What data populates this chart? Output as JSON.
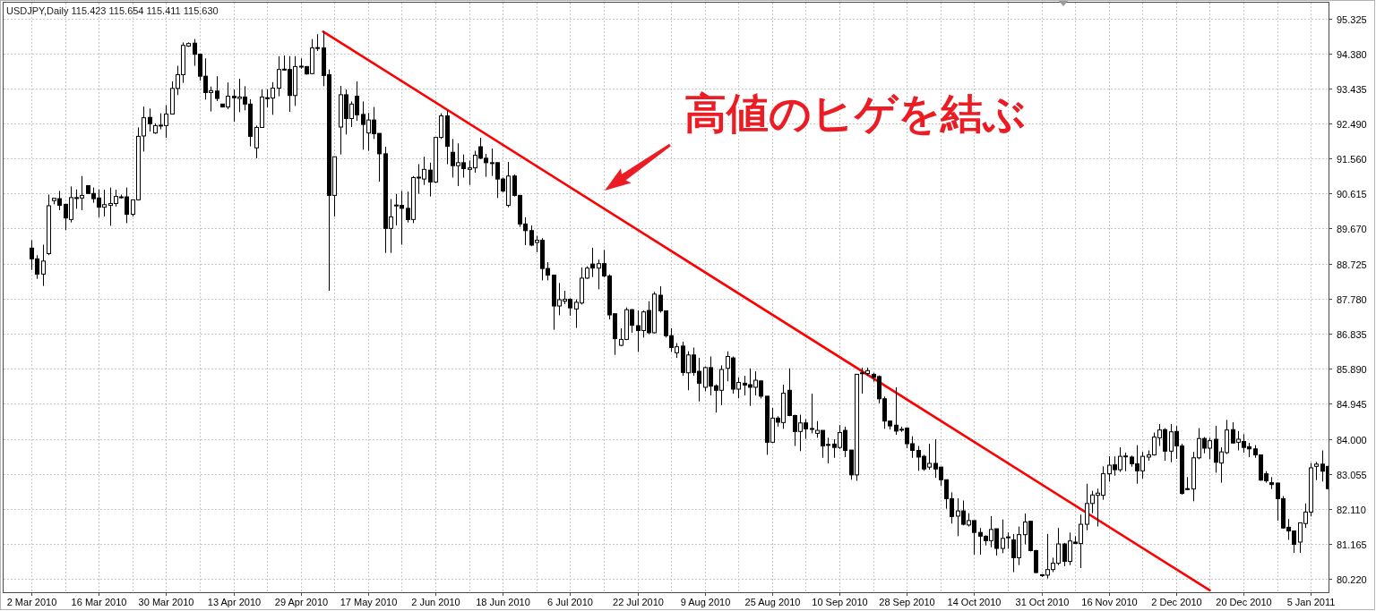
{
  "chart_data": {
    "type": "candlestick",
    "title": "USDJPY,Daily 115.423 115.654 115.411 115.630",
    "annotations": [
      "高値のヒゲを結ぶ"
    ],
    "categories": [
      "2 Mar 2010",
      null,
      null,
      null,
      null,
      null,
      null,
      null,
      null,
      null,
      null,
      null,
      "16 Mar 2010",
      null,
      null,
      null,
      null,
      null,
      null,
      null,
      null,
      null,
      null,
      null,
      "30 Mar 2010",
      null,
      null,
      null,
      null,
      null,
      null,
      null,
      null,
      null,
      null,
      null,
      "13 Apr 2010",
      null,
      null,
      null,
      null,
      null,
      null,
      null,
      null,
      null,
      null,
      null,
      "29 Apr 2010",
      null,
      null,
      null,
      null,
      null,
      null,
      null,
      null,
      null,
      null,
      null,
      "17 May 2010",
      null,
      null,
      null,
      null,
      null,
      null,
      null,
      null,
      null,
      null,
      null,
      "2 Jun 2010",
      null,
      null,
      null,
      null,
      null,
      null,
      null,
      null,
      null,
      null,
      null,
      "18 Jun 2010",
      null,
      null,
      null,
      null,
      null,
      null,
      null,
      null,
      null,
      null,
      null,
      "6 Jul 2010",
      null,
      null,
      null,
      null,
      null,
      null,
      null,
      null,
      null,
      null,
      null,
      "22 Jul 2010",
      null,
      null,
      null,
      null,
      null,
      null,
      null,
      null,
      null,
      null,
      null,
      "9 Aug 2010",
      null,
      null,
      null,
      null,
      null,
      null,
      null,
      null,
      null,
      null,
      null,
      "25 Aug 2010",
      null,
      null,
      null,
      null,
      null,
      null,
      null,
      null,
      null,
      null,
      null,
      "10 Sep 2010",
      null,
      null,
      null,
      null,
      null,
      null,
      null,
      null,
      null,
      null,
      null,
      "28 Sep 2010",
      null,
      null,
      null,
      null,
      null,
      null,
      null,
      null,
      null,
      null,
      null,
      "14 Oct 2010",
      null,
      null,
      null,
      null,
      null,
      null,
      null,
      null,
      null,
      null,
      null,
      "31 Oct 2010",
      null,
      null,
      null,
      null,
      null,
      null,
      null,
      null,
      null,
      null,
      null,
      "16 Nov 2010",
      null,
      null,
      null,
      null,
      null,
      null,
      null,
      null,
      null,
      null,
      null,
      "2 Dec 2010",
      null,
      null,
      null,
      null,
      null,
      null,
      null,
      null,
      null,
      null,
      null,
      "20 Dec 2010",
      null,
      null,
      null,
      null,
      null,
      null,
      null,
      null,
      null,
      null,
      null,
      "5 Jan 2011",
      null,
      null,
      null
    ],
    "series": [
      {
        "ohlc": [
          [
            89.14,
            89.35,
            88.55,
            88.85
          ],
          [
            88.85,
            88.95,
            88.31,
            88.44
          ],
          [
            88.44,
            89.23,
            88.12,
            88.79
          ],
          [
            88.99,
            90.58,
            88.95,
            90.28
          ],
          [
            90.42,
            90.48,
            90.32,
            90.48
          ],
          [
            90.47,
            90.68,
            90.16,
            90.29
          ],
          [
            90.32,
            90.33,
            89.62,
            89.95
          ],
          [
            89.91,
            90.8,
            89.83,
            90.5
          ],
          [
            90.49,
            90.72,
            90.2,
            90.5
          ],
          [
            90.49,
            91.08,
            90.16,
            90.56
          ],
          [
            90.82,
            90.83,
            90.6,
            90.61
          ],
          [
            90.61,
            90.77,
            90.36,
            90.47
          ],
          [
            90.49,
            90.72,
            89.97,
            90.24
          ],
          [
            90.24,
            90.71,
            89.99,
            90.31
          ],
          [
            90.29,
            90.77,
            89.74,
            90.34
          ],
          [
            90.34,
            90.71,
            90.26,
            90.53
          ],
          [
            90.52,
            90.58,
            90.47,
            90.5
          ],
          [
            90.52,
            90.77,
            89.81,
            90.05
          ],
          [
            90.05,
            90.45,
            89.99,
            90.44
          ],
          [
            90.44,
            92.39,
            90.42,
            92.15
          ],
          [
            92.16,
            92.95,
            91.74,
            92.65
          ],
          [
            92.66,
            92.9,
            92.28,
            92.49
          ],
          [
            92.24,
            92.5,
            92.22,
            92.44
          ],
          [
            92.44,
            92.77,
            92.34,
            92.45
          ],
          [
            92.44,
            92.99,
            92.11,
            92.75
          ],
          [
            92.75,
            93.63,
            92.74,
            93.44
          ],
          [
            93.44,
            94.05,
            93.26,
            93.81
          ],
          [
            93.81,
            94.68,
            93.59,
            94.6
          ],
          [
            94.58,
            94.68,
            94.56,
            94.65
          ],
          [
            94.66,
            94.77,
            94.05,
            94.36
          ],
          [
            94.36,
            94.37,
            93.65,
            93.77
          ],
          [
            93.77,
            94.25,
            93.14,
            93.33
          ],
          [
            93.33,
            93.49,
            92.82,
            93.38
          ],
          [
            93.37,
            93.77,
            93.1,
            93.17
          ],
          [
            93.02,
            93.02,
            92.94,
            92.94
          ],
          [
            92.94,
            93.6,
            92.88,
            93.23
          ],
          [
            93.23,
            93.41,
            92.55,
            93.19
          ],
          [
            93.17,
            93.7,
            92.8,
            93.21
          ],
          [
            93.21,
            93.5,
            92.85,
            93.02
          ],
          [
            93.02,
            93.15,
            91.88,
            92.15
          ],
          [
            91.84,
            92.44,
            91.56,
            92.39
          ],
          [
            92.39,
            93.41,
            92.38,
            93.21
          ],
          [
            93.19,
            93.42,
            92.93,
            93.18
          ],
          [
            93.18,
            93.61,
            92.73,
            93.45
          ],
          [
            93.45,
            94.31,
            93.23,
            93.95
          ],
          [
            93.96,
            94.33,
            93.93,
            93.94
          ],
          [
            93.95,
            94.31,
            92.81,
            93.25
          ],
          [
            93.25,
            94.31,
            92.97,
            94.03
          ],
          [
            94.03,
            94.25,
            93.97,
            94.04
          ],
          [
            94.03,
            94.04,
            93.81,
            93.83
          ],
          [
            93.84,
            94.77,
            93.82,
            94.53
          ],
          [
            94.53,
            94.9,
            94.45,
            94.54
          ],
          [
            94.53,
            94.97,
            93.5,
            93.79
          ],
          [
            93.81,
            93.95,
            87.99,
            90.56
          ],
          [
            90.56,
            91.6,
            89.99,
            91.6
          ],
          [
            92.4,
            93.51,
            91.66,
            93.27
          ],
          [
            93.27,
            93.41,
            92.2,
            92.63
          ],
          [
            92.63,
            93.09,
            92.4,
            93.02
          ],
          [
            93.23,
            93.63,
            92.57,
            92.73
          ],
          [
            92.74,
            93.09,
            91.79,
            92.47
          ],
          [
            92.24,
            92.78,
            91.76,
            92.59
          ],
          [
            92.59,
            92.94,
            92.08,
            92.22
          ],
          [
            92.23,
            92.23,
            90.93,
            91.68
          ],
          [
            91.68,
            91.87,
            89.01,
            89.67
          ],
          [
            89.67,
            90.46,
            89.01,
            89.98
          ],
          [
            90.29,
            90.6,
            89.75,
            90.3
          ],
          [
            90.29,
            90.68,
            89.23,
            90.21
          ],
          [
            90.21,
            90.66,
            89.83,
            89.91
          ],
          [
            89.91,
            91.08,
            89.81,
            91.04
          ],
          [
            91.04,
            91.4,
            90.6,
            91.05
          ],
          [
            91.0,
            91.6,
            90.84,
            91.26
          ],
          [
            91.24,
            91.44,
            90.53,
            90.92
          ],
          [
            90.92,
            92.13,
            90.89,
            92.12
          ],
          [
            92.12,
            92.77,
            92.08,
            92.7
          ],
          [
            92.7,
            92.85,
            91.4,
            91.88
          ],
          [
            91.72,
            92.08,
            91.04,
            91.36
          ],
          [
            91.36,
            91.96,
            90.81,
            91.44
          ],
          [
            91.44,
            91.66,
            91.04,
            91.28
          ],
          [
            91.26,
            91.5,
            90.84,
            91.3
          ],
          [
            91.3,
            91.76,
            91.17,
            91.64
          ],
          [
            91.87,
            92.11,
            91.54,
            91.56
          ],
          [
            91.56,
            91.68,
            91.06,
            91.44
          ],
          [
            91.44,
            91.82,
            91.08,
            91.43
          ],
          [
            91.44,
            91.45,
            90.49,
            91.0
          ],
          [
            91.0,
            91.04,
            90.64,
            90.68
          ],
          [
            90.29,
            91.46,
            90.24,
            91.08
          ],
          [
            91.08,
            91.12,
            90.53,
            90.56
          ],
          [
            90.56,
            90.57,
            89.71,
            89.79
          ],
          [
            89.79,
            89.97,
            89.22,
            89.61
          ],
          [
            89.61,
            89.75,
            89.19,
            89.22
          ],
          [
            89.29,
            89.47,
            89.03,
            89.35
          ],
          [
            89.35,
            89.41,
            88.27,
            88.59
          ],
          [
            88.59,
            88.76,
            88.27,
            88.41
          ],
          [
            88.41,
            88.42,
            86.94,
            87.58
          ],
          [
            87.58,
            88.2,
            87.33,
            87.75
          ],
          [
            87.71,
            87.99,
            87.63,
            87.76
          ],
          [
            87.76,
            87.79,
            87.32,
            87.53
          ],
          [
            87.5,
            87.76,
            86.99,
            87.68
          ],
          [
            87.66,
            88.62,
            87.62,
            88.33
          ],
          [
            88.33,
            88.65,
            88.31,
            88.6
          ],
          [
            88.71,
            89.15,
            88.36,
            88.6
          ],
          [
            88.6,
            88.83,
            88.03,
            88.72
          ],
          [
            88.72,
            89.09,
            88.35,
            88.39
          ],
          [
            88.39,
            88.43,
            87.22,
            87.34
          ],
          [
            87.37,
            87.38,
            86.26,
            86.7
          ],
          [
            86.52,
            86.98,
            86.5,
            86.68
          ],
          [
            86.68,
            87.54,
            86.66,
            87.48
          ],
          [
            87.48,
            87.5,
            86.86,
            87.06
          ],
          [
            87.05,
            87.46,
            86.34,
            86.92
          ],
          [
            86.92,
            87.46,
            86.73,
            87.42
          ],
          [
            87.46,
            87.71,
            86.82,
            86.86
          ],
          [
            86.86,
            87.96,
            86.84,
            87.9
          ],
          [
            87.87,
            88.11,
            87.4,
            87.45
          ],
          [
            87.45,
            87.46,
            86.73,
            86.78
          ],
          [
            86.78,
            86.98,
            86.34,
            86.46
          ],
          [
            86.32,
            86.58,
            86.18,
            86.48
          ],
          [
            86.5,
            86.62,
            85.7,
            85.79
          ],
          [
            85.78,
            86.36,
            85.31,
            86.26
          ],
          [
            86.26,
            86.46,
            85.7,
            85.79
          ],
          [
            85.82,
            86.18,
            85.01,
            85.5
          ],
          [
            85.39,
            85.95,
            85.28,
            85.92
          ],
          [
            85.92,
            86.22,
            85.17,
            85.42
          ],
          [
            85.43,
            85.47,
            84.71,
            85.31
          ],
          [
            85.31,
            85.98,
            84.91,
            85.87
          ],
          [
            85.9,
            86.36,
            85.55,
            86.22
          ],
          [
            86.18,
            86.22,
            85.22,
            85.34
          ],
          [
            85.34,
            85.66,
            85.09,
            85.52
          ],
          [
            85.5,
            85.7,
            85.17,
            85.45
          ],
          [
            85.46,
            85.9,
            84.89,
            85.39
          ],
          [
            85.39,
            85.82,
            85.17,
            85.58
          ],
          [
            85.56,
            85.58,
            85.09,
            85.15
          ],
          [
            85.15,
            85.15,
            83.57,
            83.91
          ],
          [
            83.91,
            84.83,
            83.89,
            84.56
          ],
          [
            84.56,
            84.61,
            84.33,
            84.45
          ],
          [
            84.44,
            85.46,
            84.27,
            85.23
          ],
          [
            85.31,
            85.9,
            84.61,
            84.63
          ],
          [
            84.63,
            84.65,
            83.81,
            84.2
          ],
          [
            84.2,
            84.65,
            83.67,
            84.43
          ],
          [
            84.43,
            84.53,
            84.0,
            84.27
          ],
          [
            84.27,
            85.22,
            84.15,
            84.28
          ],
          [
            84.15,
            84.48,
            84.03,
            84.23
          ],
          [
            84.23,
            84.23,
            83.49,
            83.81
          ],
          [
            83.85,
            84.03,
            83.34,
            83.84
          ],
          [
            83.86,
            83.99,
            83.49,
            83.77
          ],
          [
            83.77,
            84.37,
            83.73,
            84.17
          ],
          [
            84.23,
            84.33,
            83.51,
            83.69
          ],
          [
            83.7,
            83.7,
            82.9,
            83.03
          ],
          [
            83.03,
            85.75,
            82.87,
            85.74
          ],
          [
            85.77,
            85.92,
            85.22,
            85.78
          ],
          [
            85.76,
            85.92,
            85.7,
            85.84
          ],
          [
            85.74,
            85.78,
            85.54,
            85.66
          ],
          [
            85.68,
            85.71,
            84.96,
            85.08
          ],
          [
            85.08,
            85.14,
            84.27,
            84.48
          ],
          [
            84.48,
            84.49,
            84.25,
            84.35
          ],
          [
            84.37,
            85.39,
            84.11,
            84.21
          ],
          [
            84.25,
            84.33,
            84.19,
            84.26
          ],
          [
            84.29,
            84.31,
            83.75,
            83.87
          ],
          [
            83.87,
            84.07,
            83.49,
            83.69
          ],
          [
            83.69,
            83.81,
            83.14,
            83.51
          ],
          [
            83.53,
            83.57,
            83.14,
            83.19
          ],
          [
            83.24,
            83.87,
            83.17,
            83.34
          ],
          [
            83.34,
            83.99,
            82.95,
            83.19
          ],
          [
            83.24,
            83.25,
            82.74,
            82.9
          ],
          [
            82.9,
            82.9,
            82.12,
            82.39
          ],
          [
            82.39,
            82.56,
            81.72,
            81.91
          ],
          [
            81.92,
            82.4,
            81.38,
            82.06
          ],
          [
            82.06,
            82.34,
            81.67,
            81.7
          ],
          [
            81.68,
            82.0,
            81.64,
            81.8
          ],
          [
            81.8,
            81.8,
            80.88,
            81.48
          ],
          [
            81.48,
            81.6,
            80.88,
            81.38
          ],
          [
            81.38,
            81.4,
            81.13,
            81.26
          ],
          [
            81.26,
            81.92,
            81.08,
            81.56
          ],
          [
            81.58,
            81.58,
            80.86,
            81.05
          ],
          [
            81.05,
            81.83,
            80.92,
            81.32
          ],
          [
            81.35,
            81.48,
            81.04,
            81.36
          ],
          [
            81.28,
            81.44,
            80.41,
            80.8
          ],
          [
            80.8,
            81.64,
            80.6,
            81.42
          ],
          [
            81.42,
            81.99,
            81.16,
            81.76
          ],
          [
            81.78,
            81.78,
            80.97,
            80.99
          ],
          [
            80.99,
            81.01,
            80.38,
            80.4
          ],
          [
            80.33,
            80.36,
            80.28,
            80.34
          ],
          [
            80.33,
            81.44,
            80.24,
            80.48
          ],
          [
            80.48,
            80.8,
            80.41,
            80.65
          ],
          [
            80.65,
            81.6,
            80.6,
            81.17
          ],
          [
            81.17,
            81.2,
            80.57,
            80.7
          ],
          [
            80.7,
            81.48,
            80.6,
            81.25
          ],
          [
            81.22,
            81.38,
            81.18,
            81.18
          ],
          [
            81.18,
            81.96,
            80.52,
            81.7
          ],
          [
            81.7,
            82.79,
            81.54,
            82.26
          ],
          [
            82.26,
            82.6,
            82.0,
            82.49
          ],
          [
            82.48,
            82.66,
            81.64,
            82.54
          ],
          [
            82.48,
            83.26,
            82.36,
            83.06
          ],
          [
            83.06,
            83.53,
            82.85,
            83.29
          ],
          [
            83.3,
            83.53,
            83.01,
            83.17
          ],
          [
            83.17,
            83.77,
            83.11,
            83.53
          ],
          [
            83.53,
            83.63,
            83.13,
            83.54
          ],
          [
            83.51,
            83.55,
            83.25,
            83.33
          ],
          [
            83.33,
            83.83,
            82.79,
            83.14
          ],
          [
            83.14,
            83.65,
            82.93,
            83.53
          ],
          [
            83.51,
            83.69,
            83.41,
            83.57
          ],
          [
            83.57,
            84.17,
            83.55,
            84.05
          ],
          [
            84.03,
            84.4,
            83.81,
            84.24
          ],
          [
            84.25,
            84.29,
            83.41,
            83.67
          ],
          [
            83.67,
            84.4,
            83.37,
            84.19
          ],
          [
            84.2,
            84.35,
            83.46,
            83.81
          ],
          [
            83.81,
            83.87,
            82.5,
            82.53
          ],
          [
            82.66,
            82.97,
            82.63,
            82.64
          ],
          [
            82.65,
            83.65,
            82.32,
            83.49
          ],
          [
            83.49,
            84.29,
            83.45,
            84.01
          ],
          [
            84.01,
            84.05,
            83.61,
            83.75
          ],
          [
            83.75,
            84.03,
            83.45,
            83.95
          ],
          [
            83.99,
            84.35,
            83.09,
            83.37
          ],
          [
            83.35,
            83.77,
            82.82,
            83.65
          ],
          [
            83.63,
            84.51,
            83.59,
            84.24
          ],
          [
            84.25,
            84.45,
            83.87,
            83.89
          ],
          [
            83.91,
            84.21,
            83.69,
            83.99
          ],
          [
            83.93,
            84.13,
            83.63,
            83.77
          ],
          [
            83.79,
            83.89,
            83.51,
            83.73
          ],
          [
            83.73,
            83.83,
            83.49,
            83.57
          ],
          [
            83.57,
            83.57,
            82.87,
            82.89
          ],
          [
            83.06,
            83.13,
            82.82,
            82.87
          ],
          [
            82.82,
            82.97,
            82.65,
            82.77
          ],
          [
            82.81,
            82.82,
            81.8,
            82.39
          ],
          [
            82.39,
            82.46,
            81.58,
            81.6
          ],
          [
            81.62,
            81.84,
            81.28,
            81.52
          ],
          [
            81.52,
            81.52,
            80.93,
            81.16
          ],
          [
            81.22,
            81.74,
            80.93,
            81.74
          ],
          [
            81.72,
            82.26,
            81.6,
            82.03
          ],
          [
            82.03,
            83.35,
            81.91,
            83.22
          ],
          [
            83.26,
            83.38,
            82.89,
            83.32
          ],
          [
            83.32,
            83.69,
            82.85,
            83.13
          ],
          [
            83.26,
            83.27,
            82.65,
            82.66
          ]
        ]
      },
      {
        "type": "line",
        "color": "#ff0000",
        "values": [
          null,
          null,
          null,
          null,
          null,
          null,
          null,
          null,
          null,
          null,
          null,
          null,
          null,
          null,
          null,
          null,
          null,
          null,
          null,
          null,
          null,
          null,
          null,
          null,
          null,
          null,
          null,
          null,
          null,
          null,
          null,
          null,
          null,
          null,
          null,
          null,
          null,
          null,
          null,
          null,
          null,
          null,
          null,
          null,
          null,
          null,
          null,
          null,
          null,
          null,
          null,
          null,
          94.97,
          null,
          null,
          null,
          null,
          null,
          null,
          null,
          null,
          null,
          null,
          null,
          null,
          null,
          null,
          null,
          null,
          null,
          null,
          null,
          null,
          null,
          null,
          null,
          null,
          null,
          null,
          null,
          null,
          null,
          null,
          null,
          null,
          null,
          null,
          null,
          null,
          null,
          null,
          null,
          null,
          null,
          null,
          null,
          null,
          null,
          null,
          null,
          null,
          null,
          null,
          null,
          null,
          null,
          null,
          null,
          null,
          null,
          null,
          null,
          null,
          null,
          null,
          null,
          null,
          null,
          null,
          null,
          null,
          null,
          null,
          null,
          null,
          null,
          null,
          null,
          null,
          null,
          null,
          null,
          null,
          null,
          null,
          null,
          null,
          null,
          null,
          null,
          null,
          null,
          null,
          null,
          null,
          null,
          null,
          null,
          null,
          null,
          null,
          null,
          null,
          null,
          null,
          null,
          null,
          null,
          null,
          null,
          null,
          null,
          null,
          null,
          null,
          null,
          null,
          null,
          null,
          null,
          null,
          null,
          null,
          null,
          null,
          null,
          null,
          null,
          null,
          null,
          null,
          null,
          null,
          null,
          null,
          null,
          null,
          null,
          null,
          null,
          null,
          null,
          null,
          null,
          null,
          null,
          null,
          null,
          null,
          null,
          null,
          null,
          null,
          null,
          null,
          null,
          null,
          null,
          null,
          null,
          79.92,
          null,
          null,
          null,
          null,
          null,
          null,
          null,
          null,
          null,
          null,
          null,
          null,
          null,
          null,
          null,
          null,
          null,
          null,
          null,
          null,
          null
        ]
      }
    ],
    "ylim": [
      79.87,
      95.75
    ],
    "yticks": [
      {
        "value": 95.325,
        "label": "95.325"
      },
      {
        "value": 94.38,
        "label": "94.380"
      },
      {
        "value": 93.435,
        "label": "93.435"
      },
      {
        "value": 92.49,
        "label": "92.490"
      },
      {
        "value": 91.56,
        "label": "91.560"
      },
      {
        "value": 90.615,
        "label": "90.615"
      },
      {
        "value": 89.67,
        "label": "89.670"
      },
      {
        "value": 88.725,
        "label": "88.725"
      },
      {
        "value": 87.78,
        "label": "87.780"
      },
      {
        "value": 86.835,
        "label": "86.835"
      },
      {
        "value": 85.89,
        "label": "85.890"
      },
      {
        "value": 84.945,
        "label": "84.945"
      },
      {
        "value": 84.0,
        "label": "84.000"
      },
      {
        "value": 83.055,
        "label": "83.055"
      },
      {
        "value": 82.11,
        "label": "82.110"
      },
      {
        "value": 81.165,
        "label": "81.165"
      },
      {
        "value": 80.22,
        "label": "80.220"
      }
    ],
    "grid": true
  }
}
